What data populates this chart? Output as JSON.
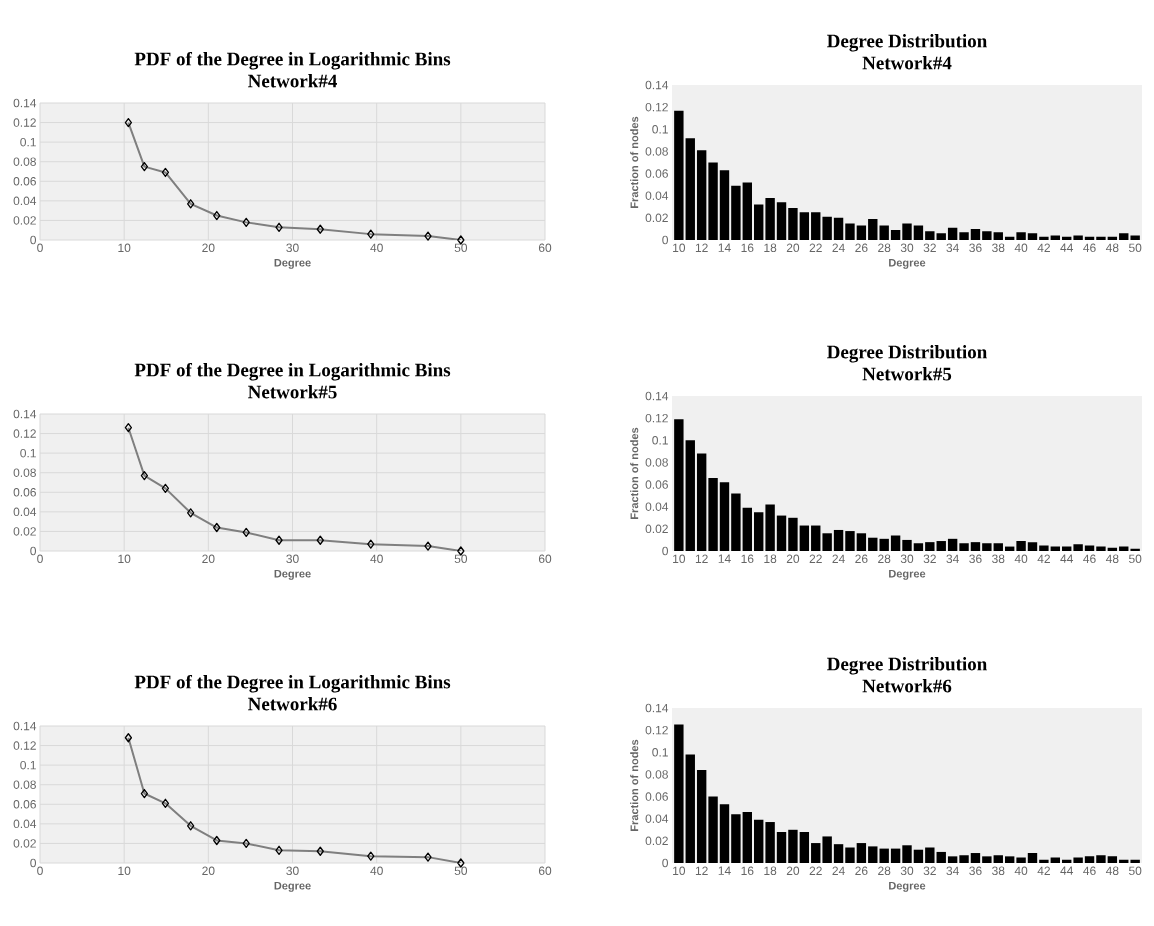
{
  "chart_data": [
    {
      "type": "line",
      "title": "PDF of the Degree in Logarithmic Bins",
      "subtitle": "Network#4",
      "xlabel": "Degree",
      "x": [
        10.5,
        12.4,
        14.9,
        17.9,
        21,
        24.5,
        28.4,
        33.3,
        39.3,
        46.1,
        50
      ],
      "values": [
        0.12,
        0.075,
        0.069,
        0.037,
        0.025,
        0.018,
        0.013,
        0.011,
        0.006,
        0.004,
        0.0
      ],
      "color": "#7f7f7f",
      "marker": "diamond",
      "line_style": "solid",
      "grid": true,
      "xlim": [
        0,
        60
      ],
      "xticks": [
        0,
        10,
        20,
        30,
        40,
        50,
        60
      ],
      "ylim": [
        0,
        0.14
      ],
      "yticks": [
        0,
        0.02,
        0.04,
        0.06,
        0.08,
        0.1,
        0.12,
        0.14
      ]
    },
    {
      "type": "bar",
      "title": "Degree Distribution",
      "subtitle": "Network#4",
      "xlabel": "Degree",
      "ylabel": "Fraction of nodes",
      "categories": [
        "10",
        null,
        "12",
        null,
        "14",
        null,
        "16",
        null,
        "18",
        null,
        "20",
        null,
        "22",
        null,
        "24",
        null,
        "26",
        null,
        "28",
        null,
        "30",
        null,
        "32",
        null,
        "34",
        null,
        "36",
        null,
        "38",
        null,
        "40",
        null,
        "42",
        null,
        "44",
        null,
        "46",
        null,
        "48",
        null,
        "50"
      ],
      "values": [
        0.117,
        0.092,
        0.081,
        0.07,
        0.063,
        0.049,
        0.052,
        0.032,
        0.038,
        0.034,
        0.029,
        0.025,
        0.025,
        0.021,
        0.02,
        0.015,
        0.013,
        0.019,
        0.013,
        0.009,
        0.015,
        0.013,
        0.008,
        0.006,
        0.011,
        0.007,
        0.01,
        0.008,
        0.007,
        0.003,
        0.007,
        0.006,
        0.003,
        0.004,
        0.003,
        0.004,
        0.003,
        0.003,
        0.003,
        0.006,
        0.004
      ],
      "color": "#000000",
      "ylim": [
        0,
        0.14
      ],
      "yticks": [
        0,
        0.02,
        0.04,
        0.06,
        0.08,
        0.1,
        0.12,
        0.14
      ]
    },
    {
      "type": "line",
      "title": "PDF of the Degree in Logarithmic Bins",
      "subtitle": "Network#5",
      "xlabel": "Degree",
      "x": [
        10.5,
        12.4,
        14.9,
        17.9,
        21,
        24.5,
        28.4,
        33.3,
        39.3,
        46.1,
        50
      ],
      "values": [
        0.126,
        0.077,
        0.064,
        0.039,
        0.024,
        0.019,
        0.011,
        0.011,
        0.007,
        0.005,
        0.0
      ],
      "color": "#7f7f7f",
      "marker": "diamond",
      "line_style": "solid",
      "grid": true,
      "xlim": [
        0,
        60
      ],
      "xticks": [
        0,
        10,
        20,
        30,
        40,
        50,
        60
      ],
      "ylim": [
        0,
        0.14
      ],
      "yticks": [
        0,
        0.02,
        0.04,
        0.06,
        0.08,
        0.1,
        0.12,
        0.14
      ]
    },
    {
      "type": "bar",
      "title": "Degree Distribution",
      "subtitle": "Network#5",
      "xlabel": "Degree",
      "ylabel": "Fraction of nodes",
      "categories": [
        "10",
        null,
        "12",
        null,
        "14",
        null,
        "16",
        null,
        "18",
        null,
        "20",
        null,
        "22",
        null,
        "24",
        null,
        "26",
        null,
        "28",
        null,
        "30",
        null,
        "32",
        null,
        "34",
        null,
        "36",
        null,
        "38",
        null,
        "40",
        null,
        "42",
        null,
        "44",
        null,
        "46",
        null,
        "48",
        null,
        "50"
      ],
      "values": [
        0.119,
        0.1,
        0.088,
        0.066,
        0.062,
        0.052,
        0.039,
        0.035,
        0.042,
        0.032,
        0.03,
        0.023,
        0.023,
        0.016,
        0.019,
        0.018,
        0.016,
        0.012,
        0.011,
        0.014,
        0.01,
        0.007,
        0.008,
        0.009,
        0.011,
        0.007,
        0.008,
        0.007,
        0.007,
        0.004,
        0.009,
        0.008,
        0.005,
        0.004,
        0.004,
        0.006,
        0.005,
        0.004,
        0.003,
        0.004,
        0.002
      ],
      "color": "#000000",
      "ylim": [
        0,
        0.14
      ],
      "yticks": [
        0,
        0.02,
        0.04,
        0.06,
        0.08,
        0.1,
        0.12,
        0.14
      ]
    },
    {
      "type": "line",
      "title": "PDF of the Degree in Logarithmic Bins",
      "subtitle": "Network#6",
      "xlabel": "Degree",
      "x": [
        10.5,
        12.4,
        14.9,
        17.9,
        21,
        24.5,
        28.4,
        33.3,
        39.3,
        46.1,
        50
      ],
      "values": [
        0.128,
        0.071,
        0.061,
        0.038,
        0.023,
        0.02,
        0.013,
        0.012,
        0.007,
        0.006,
        0.0
      ],
      "color": "#7f7f7f",
      "marker": "diamond",
      "line_style": "solid",
      "grid": true,
      "xlim": [
        0,
        60
      ],
      "xticks": [
        0,
        10,
        20,
        30,
        40,
        50,
        60
      ],
      "ylim": [
        0,
        0.14
      ],
      "yticks": [
        0,
        0.02,
        0.04,
        0.06,
        0.08,
        0.1,
        0.12,
        0.14
      ]
    },
    {
      "type": "bar",
      "title": "Degree Distribution",
      "subtitle": "Network#6",
      "xlabel": "Degree",
      "ylabel": "Fraction of nodes",
      "categories": [
        "10",
        null,
        "12",
        null,
        "14",
        null,
        "16",
        null,
        "18",
        null,
        "20",
        null,
        "22",
        null,
        "24",
        null,
        "26",
        null,
        "28",
        null,
        "30",
        null,
        "32",
        null,
        "34",
        null,
        "36",
        null,
        "38",
        null,
        "40",
        null,
        "42",
        null,
        "44",
        null,
        "46",
        null,
        "48",
        null,
        "50"
      ],
      "values": [
        0.125,
        0.098,
        0.084,
        0.06,
        0.053,
        0.044,
        0.046,
        0.039,
        0.037,
        0.028,
        0.03,
        0.028,
        0.018,
        0.024,
        0.017,
        0.014,
        0.018,
        0.015,
        0.013,
        0.013,
        0.016,
        0.012,
        0.014,
        0.01,
        0.006,
        0.007,
        0.009,
        0.006,
        0.007,
        0.006,
        0.005,
        0.009,
        0.003,
        0.005,
        0.003,
        0.005,
        0.006,
        0.007,
        0.006,
        0.003,
        0.003
      ],
      "color": "#000000",
      "ylim": [
        0,
        0.14
      ],
      "yticks": [
        0,
        0.02,
        0.04,
        0.06,
        0.08,
        0.1,
        0.12,
        0.14
      ]
    }
  ]
}
